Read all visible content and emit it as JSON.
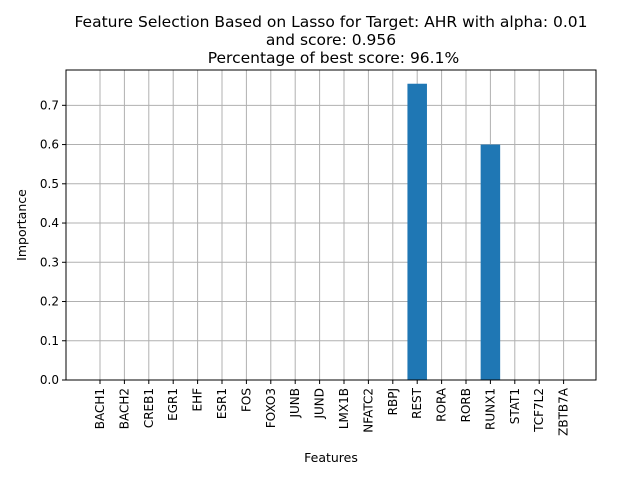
{
  "chart_data": {
    "type": "bar",
    "title_lines": [
      "Feature Selection Based on Lasso for Target: AHR with alpha: 0.01",
      "and score: 0.956",
      " Percentage of best score: 96.1%"
    ],
    "xlabel": "Features",
    "ylabel": "Importance",
    "categories": [
      "BACH1",
      "BACH2",
      "CREB1",
      "EGR1",
      "EHF",
      "ESR1",
      "FOS",
      "FOXO3",
      "JUNB",
      "JUND",
      "LMX1B",
      "NFATC2",
      "RBPJ",
      "REST",
      "RORA",
      "RORB",
      "RUNX1",
      "STAT1",
      "TCF7L2",
      "ZBTB7A"
    ],
    "values": [
      0,
      0,
      0,
      0,
      0,
      0,
      0,
      0,
      0,
      0,
      0,
      0,
      0,
      0.755,
      0,
      0,
      0.6,
      0,
      0,
      0
    ],
    "yticks": [
      "0.0",
      "0.1",
      "0.2",
      "0.3",
      "0.4",
      "0.5",
      "0.6",
      "0.7"
    ],
    "ylim": [
      0,
      0.79
    ],
    "grid": true,
    "bar_color": "#1f77b4"
  }
}
